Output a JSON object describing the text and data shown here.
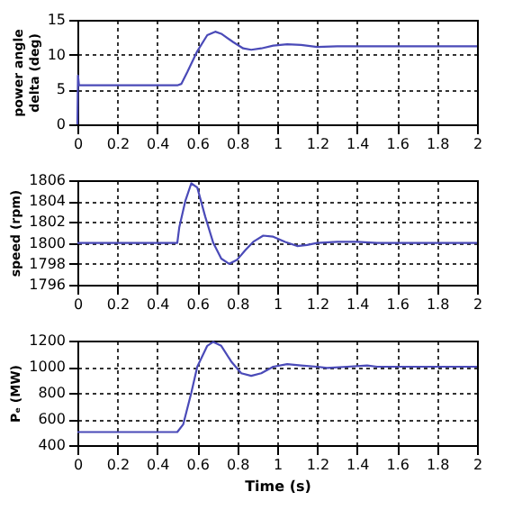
{
  "chart_data": [
    {
      "type": "line",
      "ylabel": "power angle delta (deg)",
      "xlim": [
        0,
        2
      ],
      "xticks": [
        0,
        0.2,
        0.4,
        0.6,
        0.8,
        1,
        1.2,
        1.4,
        1.6,
        1.8,
        2
      ],
      "ylim": [
        0,
        15
      ],
      "yticks": [
        0,
        5,
        10,
        15
      ],
      "grid": true,
      "series": [
        {
          "color": "#4a4ab8",
          "x": [
            0,
            0.003,
            0.008,
            0.5,
            0.52,
            0.55,
            0.6,
            0.65,
            0.69,
            0.72,
            0.78,
            0.83,
            0.87,
            0.92,
            0.98,
            1.05,
            1.12,
            1.2,
            1.3,
            2
          ],
          "values": [
            0,
            7,
            5.6,
            5.6,
            5.8,
            7.5,
            10.5,
            12.8,
            13.3,
            13.0,
            11.8,
            10.9,
            10.7,
            10.9,
            11.3,
            11.5,
            11.4,
            11.1,
            11.2,
            11.2
          ]
        }
      ]
    },
    {
      "type": "line",
      "ylabel": "speed (rpm)",
      "xlim": [
        0,
        2
      ],
      "xticks": [
        0,
        0.2,
        0.4,
        0.6,
        0.8,
        1,
        1.2,
        1.4,
        1.6,
        1.8,
        2
      ],
      "ylim": [
        1796,
        1806
      ],
      "yticks": [
        1796,
        1798,
        1800,
        1802,
        1804,
        1806
      ],
      "grid": true,
      "series": [
        {
          "color": "#4a4ab8",
          "x": [
            0,
            0.5,
            0.51,
            0.54,
            0.57,
            0.6,
            0.64,
            0.68,
            0.72,
            0.76,
            0.8,
            0.84,
            0.88,
            0.93,
            0.98,
            1.04,
            1.1,
            1.15,
            1.2,
            1.3,
            1.4,
            1.5,
            2
          ],
          "values": [
            1800,
            1800,
            1801.5,
            1804,
            1805.7,
            1805.3,
            1802.5,
            1800,
            1798.5,
            1798.0,
            1798.4,
            1799.3,
            1800.1,
            1800.7,
            1800.6,
            1800.1,
            1799.7,
            1799.8,
            1800.0,
            1800.1,
            1800.1,
            1800,
            1800
          ]
        }
      ]
    },
    {
      "type": "line",
      "xlabel": "Time (s)",
      "ylabel": "Pₑ (MW)",
      "xlim": [
        0,
        2
      ],
      "xticks": [
        0,
        0.2,
        0.4,
        0.6,
        0.8,
        1,
        1.2,
        1.4,
        1.6,
        1.8,
        2
      ],
      "ylim": [
        400,
        1200
      ],
      "yticks": [
        400,
        600,
        800,
        1000,
        1200
      ],
      "grid": true,
      "series": [
        {
          "color": "#4a4ab8",
          "x": [
            0,
            0.5,
            0.53,
            0.57,
            0.6,
            0.65,
            0.68,
            0.72,
            0.77,
            0.82,
            0.87,
            0.92,
            0.98,
            1.05,
            1.12,
            1.2,
            1.25,
            1.35,
            1.45,
            1.5,
            2
          ],
          "values": [
            500,
            500,
            560,
            800,
            1000,
            1160,
            1190,
            1160,
            1040,
            950,
            930,
            950,
            1000,
            1020,
            1010,
            1000,
            990,
            1000,
            1010,
            1000,
            1000
          ]
        }
      ]
    }
  ]
}
